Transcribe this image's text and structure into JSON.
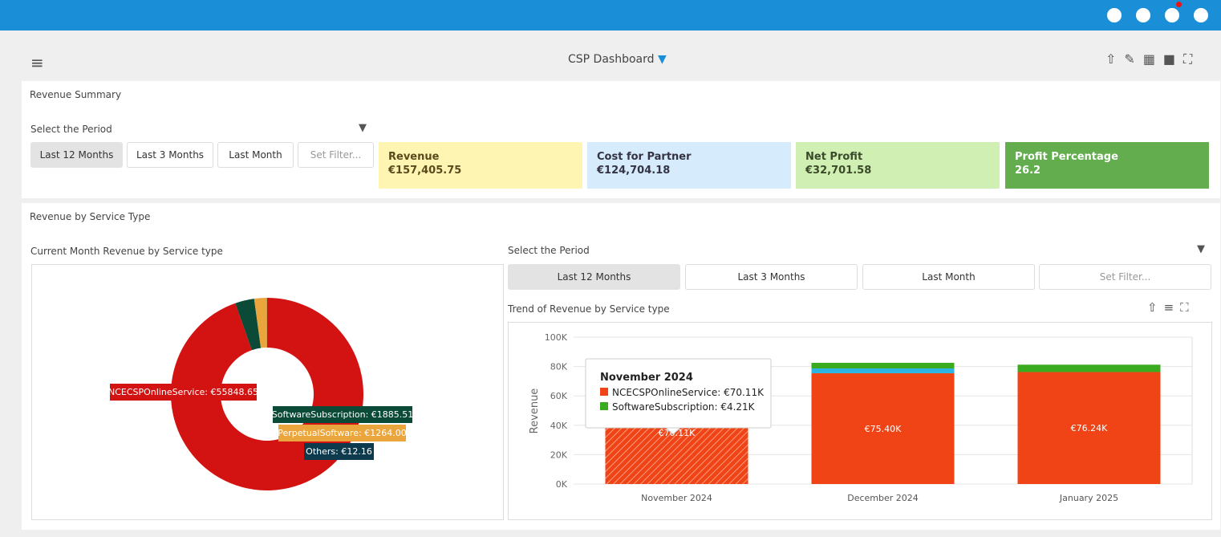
{
  "header": {
    "title": "CSP Dashboard"
  },
  "summary": {
    "title": "Revenue Summary",
    "period_label": "Select the Period",
    "buttons": [
      "Last 12 Months",
      "Last 3 Months",
      "Last Month",
      "Set Filter..."
    ],
    "cards": [
      {
        "label": "Revenue",
        "value": "€157,405.75"
      },
      {
        "label": "Cost for Partner",
        "value": "€124,704.18"
      },
      {
        "label": "Net Profit",
        "value": "€32,701.58"
      },
      {
        "label": "Profit Percentage",
        "value": "26.2"
      }
    ]
  },
  "service": {
    "title": "Revenue by Service Type",
    "pie_title": "Current Month Revenue by Service type",
    "period_label": "Select the Period",
    "buttons": [
      "Last 12 Months",
      "Last 3 Months",
      "Last Month",
      "Set Filter..."
    ]
  },
  "chart_data": [
    {
      "type": "pie",
      "categories": [
        "NCECSPOnlineService",
        "SoftwareSubscription",
        "PerpetualSoftware",
        "Others"
      ],
      "values": [
        55848.65,
        1885.51,
        1264.0,
        12.16
      ],
      "value_labels": [
        "NCECSPOnlineService: €55848.65",
        "SoftwareSubscription: €1885.51",
        "PerpetualSoftware: €1264.00",
        "Others: €12.16"
      ],
      "colors": [
        "#d31212",
        "#0b4a36",
        "#eaa53c",
        "#0d3a4c"
      ]
    },
    {
      "type": "bar",
      "title": "Trend of Revenue by Service type",
      "ylabel": "Revenue",
      "categories": [
        "November 2024",
        "December 2024",
        "January 2025"
      ],
      "ylim": [
        0,
        100000
      ],
      "yticks": [
        {
          "value": 0,
          "label": "0K"
        },
        {
          "value": 20000,
          "label": "20K"
        },
        {
          "value": 40000,
          "label": "40K"
        },
        {
          "value": 60000,
          "label": "60K"
        },
        {
          "value": 80000,
          "label": "80K"
        },
        {
          "value": 100000,
          "label": "100K"
        }
      ],
      "stacked": true,
      "series": [
        {
          "name": "NCECSPOnlineService",
          "color": "#f04316",
          "values": [
            70110,
            75400,
            76240
          ],
          "value_labels": [
            "€70.11K",
            "€75.40K",
            "€76.24K"
          ]
        },
        {
          "color": "#2cb5e2",
          "values": [
            null,
            3300,
            null
          ]
        },
        {
          "name": "SoftwareSubscription",
          "color": "#3aab1e",
          "values": [
            4210,
            3800,
            5000
          ]
        }
      ],
      "tooltip": {
        "title": "November 2024",
        "items": [
          "NCECSPOnlineService: €70.11K",
          "SoftwareSubscription: €4.21K"
        ]
      }
    }
  ]
}
